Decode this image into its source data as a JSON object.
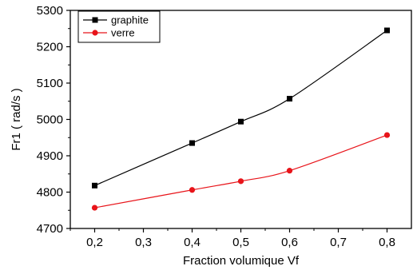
{
  "chart_data": {
    "type": "line",
    "xlabel": "Fraction volumique Vf",
    "ylabel": "Fr1 ( rad/s )",
    "xlim": [
      0.15,
      0.85
    ],
    "ylim": [
      4700,
      5300
    ],
    "x_ticks": [
      0.2,
      0.3,
      0.4,
      0.5,
      0.6,
      0.7,
      0.8
    ],
    "x_tick_labels": [
      "0,2",
      "0,3",
      "0,4",
      "0,5",
      "0,6",
      "0,7",
      "0,8"
    ],
    "y_ticks": [
      4700,
      4800,
      4900,
      5000,
      5100,
      5200,
      5300
    ],
    "y_tick_labels": [
      "4700",
      "4800",
      "4900",
      "5000",
      "5100",
      "5200",
      "5300"
    ],
    "grid": false,
    "legend_position": "top-left",
    "series": [
      {
        "name": "graphite",
        "color": "#000000",
        "marker": "square",
        "x": [
          0.2,
          0.4,
          0.5,
          0.6,
          0.8
        ],
        "y": [
          4818,
          4935,
          4994,
          5057,
          5245
        ]
      },
      {
        "name": "verre",
        "color": "#e8141a",
        "marker": "circle",
        "x": [
          0.2,
          0.4,
          0.5,
          0.6,
          0.8
        ],
        "y": [
          4757,
          4806,
          4830,
          4859,
          4957
        ]
      }
    ]
  }
}
